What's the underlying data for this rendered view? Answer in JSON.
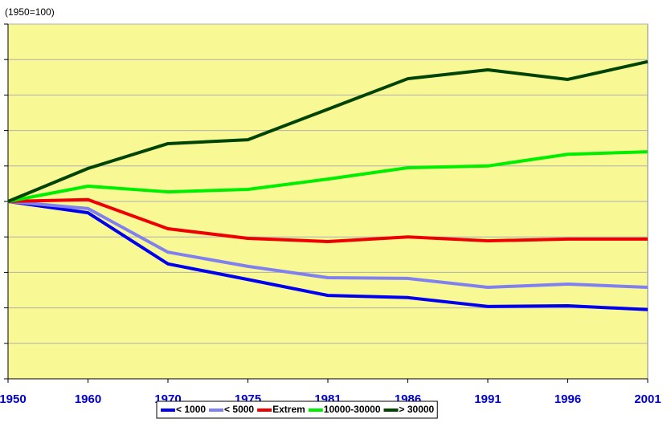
{
  "chart_data": {
    "type": "line",
    "title": "(1950=100)",
    "categories": [
      "1950",
      "1960",
      "1970",
      "1975",
      "1981",
      "1986",
      "1991",
      "1996",
      "2001"
    ],
    "series": [
      {
        "name": "< 1000",
        "color": "#0000ee",
        "values": [
          100,
          96.8,
          82.4,
          78,
          73.5,
          72.9,
          70.4,
          70.6,
          69.5
        ]
      },
      {
        "name": "< 5000",
        "color": "#8080f0",
        "values": [
          100,
          98,
          85.7,
          81.7,
          78.5,
          78.3,
          75.8,
          76.7,
          75.8
        ]
      },
      {
        "name": "Extrem",
        "color": "#ee0000",
        "values": [
          100,
          100.5,
          92.3,
          89.6,
          88.7,
          90,
          88.9,
          89.4,
          89.4
        ]
      },
      {
        "name": "10000-30000",
        "color": "#00ee00",
        "values": [
          100,
          104.3,
          102.7,
          103.4,
          106.3,
          109.5,
          110,
          113.3,
          114
        ]
      },
      {
        "name": "> 30000",
        "color": "#004400",
        "values": [
          100,
          109.3,
          116.3,
          117.4,
          126,
          134.6,
          137.1,
          134.4,
          139.4
        ]
      }
    ],
    "ylim": [
      50,
      150
    ],
    "yticks": [
      50,
      60,
      70,
      80,
      90,
      100,
      110,
      120,
      130,
      140,
      150
    ],
    "grid": true
  }
}
